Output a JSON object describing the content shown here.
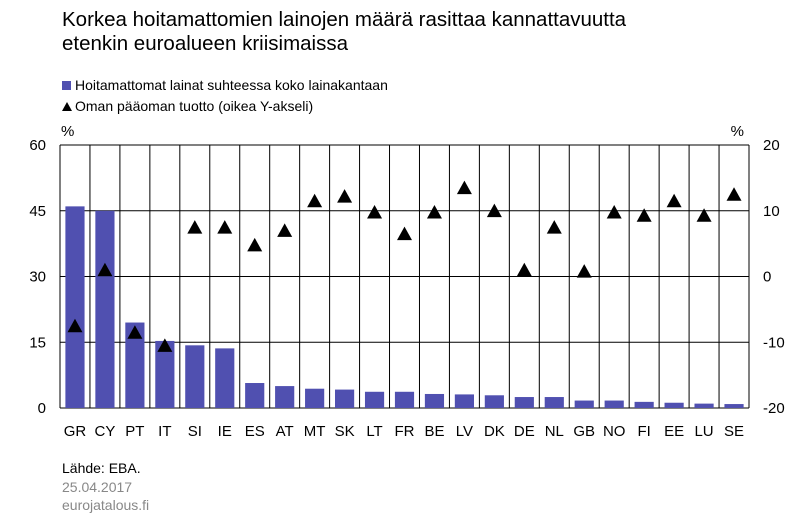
{
  "header": {
    "title_line1": "Korkea hoitamattomien lainojen määrä rasittaa kannattavuutta",
    "title_line2": "etenkin euroalueen kriisimaissa"
  },
  "footer": {
    "source": "Lähde: EBA.",
    "date": "25.04.2017",
    "site": "eurojatalous.fi"
  },
  "colors": {
    "bar": "#5050b0",
    "marker": "#000000",
    "grid": "#000000",
    "footer_gray": "#888888"
  },
  "chart_data": {
    "type": "bar",
    "categories": [
      "GR",
      "CY",
      "PT",
      "IT",
      "SI",
      "IE",
      "ES",
      "AT",
      "MT",
      "SK",
      "LT",
      "FR",
      "BE",
      "LV",
      "DK",
      "DE",
      "NL",
      "GB",
      "NO",
      "FI",
      "EE",
      "LU",
      "SE"
    ],
    "series": [
      {
        "name": "Hoitamattomat lainat suhteessa koko lainakantaan",
        "type": "bar",
        "axis": "left",
        "values": [
          46,
          45,
          19.5,
          15.3,
          14.3,
          13.6,
          5.7,
          5.0,
          4.4,
          4.2,
          3.7,
          3.7,
          3.2,
          3.1,
          2.9,
          2.5,
          2.5,
          1.7,
          1.7,
          1.4,
          1.2,
          1.0,
          0.9
        ]
      },
      {
        "name": "Oman pääoman tuotto (oikea Y-akseli)",
        "type": "marker",
        "axis": "right",
        "values": [
          -7.5,
          1.0,
          -8.5,
          -10.5,
          7.5,
          7.5,
          4.8,
          7.0,
          11.5,
          12.2,
          9.8,
          6.5,
          9.8,
          13.5,
          10.0,
          1.0,
          7.5,
          0.8,
          9.8,
          9.3,
          11.5,
          9.3,
          12.5
        ]
      }
    ],
    "y_left": {
      "label": "%",
      "ylim": [
        0,
        60
      ],
      "ticks": [
        0,
        15,
        30,
        45,
        60
      ]
    },
    "y_right": {
      "label": "%",
      "ylim": [
        -20,
        20
      ],
      "ticks": [
        -20,
        -10,
        0,
        10,
        20
      ]
    },
    "grid": true,
    "legend_position": "top-left"
  }
}
